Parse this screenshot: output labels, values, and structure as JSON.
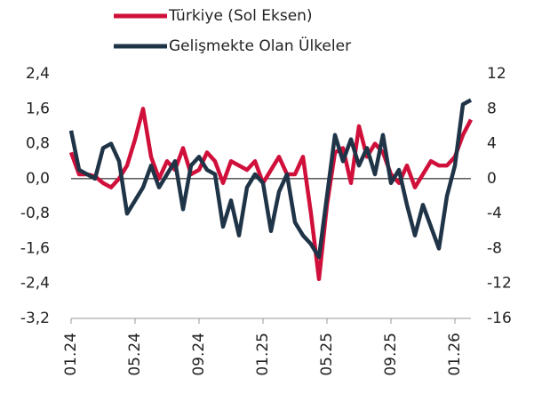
{
  "chart_data": {
    "type": "line",
    "categories": [
      "01.24",
      null,
      null,
      null,
      null,
      null,
      null,
      null,
      "05.24",
      null,
      null,
      null,
      null,
      null,
      null,
      null,
      "09.24",
      null,
      null,
      null,
      null,
      null,
      null,
      null,
      "01.25",
      null,
      null,
      null,
      null,
      null,
      null,
      null,
      "05.25",
      null,
      null,
      null,
      null,
      null,
      null,
      null,
      "09.25",
      null,
      null,
      null,
      null,
      null,
      null,
      null,
      "01.26",
      null,
      null
    ],
    "series": [
      {
        "name": "Türkiye (Sol Eksen)",
        "color": "#d0103a",
        "axis": "y",
        "values": [
          0.6,
          0.1,
          0.1,
          0.05,
          -0.1,
          -0.2,
          0.0,
          0.3,
          0.9,
          1.6,
          0.5,
          0.0,
          0.4,
          0.2,
          0.7,
          0.1,
          0.2,
          0.6,
          0.4,
          -0.1,
          0.4,
          0.3,
          0.2,
          0.4,
          -0.1,
          0.2,
          0.5,
          0.1,
          0.1,
          0.5,
          -0.8,
          -2.3,
          -0.6,
          0.6,
          0.7,
          -0.1,
          1.2,
          0.5,
          0.8,
          0.6,
          0.1,
          -0.1,
          0.3,
          -0.2,
          0.1,
          0.4,
          0.3,
          0.3,
          0.5,
          1.0,
          1.35
        ]
      },
      {
        "name": "Gelişmekte Olan Ülkeler",
        "color": "#1f3447",
        "axis": "y2",
        "values": [
          5.5,
          1.0,
          0.5,
          0.0,
          3.5,
          4.0,
          2.0,
          -4.0,
          -2.5,
          -1.0,
          1.5,
          -1.0,
          0.5,
          2.0,
          -3.5,
          1.5,
          2.5,
          1.0,
          0.5,
          -5.5,
          -2.5,
          -6.5,
          -1.0,
          0.5,
          -0.5,
          -6.0,
          -1.5,
          0.5,
          -5.0,
          -6.5,
          -7.5,
          -9.0,
          -2.0,
          5.0,
          2.0,
          4.5,
          1.5,
          3.5,
          0.5,
          5.0,
          -0.5,
          1.0,
          -3.0,
          -6.5,
          -3.0,
          -5.5,
          -8.0,
          -2.0,
          1.5,
          8.5,
          9.0
        ]
      }
    ],
    "ylim": [
      -3.2,
      2.4
    ],
    "yticks": [
      {
        "value": 2.4,
        "label": "2,4"
      },
      {
        "value": 1.6,
        "label": "1,6"
      },
      {
        "value": 0.8,
        "label": "0,8"
      },
      {
        "value": 0.0,
        "label": "0,0"
      },
      {
        "value": -0.8,
        "label": "-0,8"
      },
      {
        "value": -1.6,
        "label": "-1,6"
      },
      {
        "value": -2.4,
        "label": "-2,4"
      },
      {
        "value": -3.2,
        "label": "-3,2"
      }
    ],
    "y2lim": [
      -16,
      12
    ],
    "y2ticks": [
      12,
      8,
      4,
      0,
      -4,
      -8,
      -12,
      -16
    ],
    "zero_line": true,
    "grid": false,
    "legend": "top"
  }
}
